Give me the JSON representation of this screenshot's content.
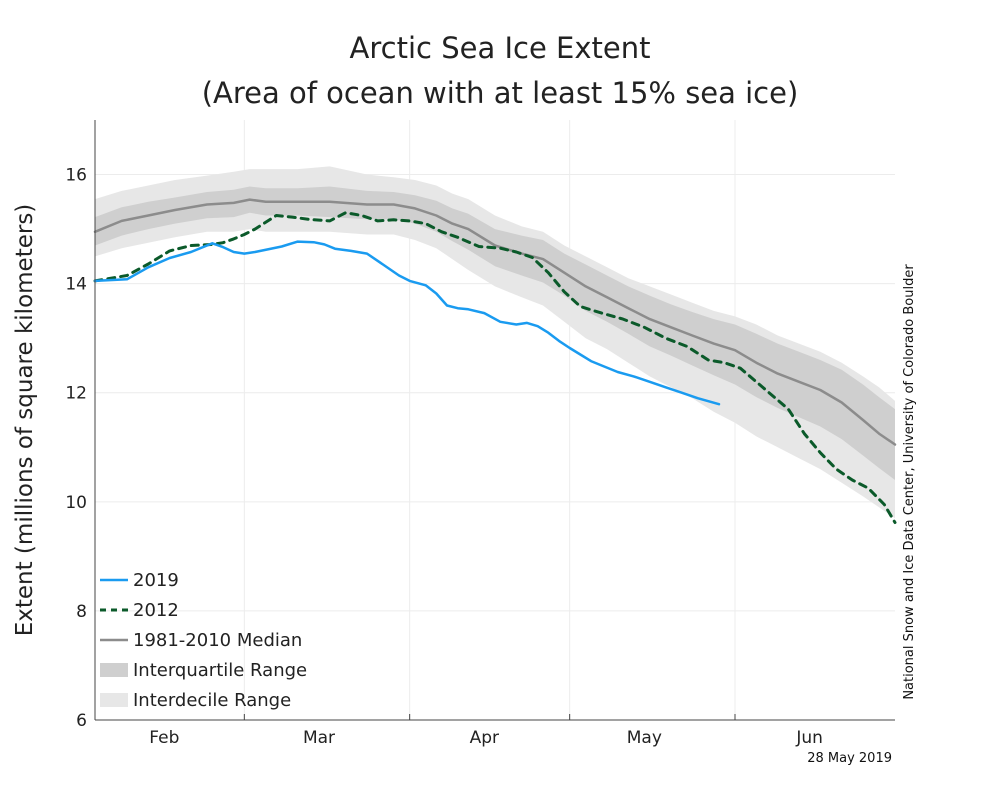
{
  "chart_data": {
    "type": "line",
    "title": [
      "Arctic Sea Ice Extent",
      "(Area of ocean with at least 15% sea ice)"
    ],
    "ylabel": "Extent (millions of square kilometers)",
    "xlabel": "",
    "ylim": [
      6,
      17
    ],
    "xlim": [
      0,
      150
    ],
    "yticks": [
      6,
      8,
      10,
      12,
      14,
      16
    ],
    "x_tick_labels": [
      {
        "x": 13,
        "label": "Feb"
      },
      {
        "x": 42,
        "label": "Mar"
      },
      {
        "x": 73,
        "label": "Apr"
      },
      {
        "x": 103,
        "label": "May"
      },
      {
        "x": 134,
        "label": "Jun"
      }
    ],
    "month_boundaries": [
      28,
      59,
      89,
      120
    ],
    "grid": true,
    "legend_position": "bottom-left",
    "colors": {
      "s2019": "#1a9bf0",
      "s2012": "#0b5a2a",
      "median": "#8c8c8c",
      "interquartile": "#cfcfcf",
      "interdecile": "#e7e7e7"
    },
    "series": [
      {
        "name": "2019",
        "x": [
          0,
          6,
          10,
          14,
          18,
          22,
          24,
          26,
          28,
          30,
          35,
          38,
          41,
          43,
          45,
          48,
          51,
          54,
          57,
          59,
          62,
          64,
          66,
          68,
          70,
          73,
          76,
          79,
          81,
          83,
          85,
          87,
          89,
          91,
          93,
          95,
          98,
          101,
          104,
          107,
          110,
          113,
          117
        ],
        "values": [
          14.05,
          14.08,
          14.3,
          14.47,
          14.58,
          14.74,
          14.67,
          14.58,
          14.55,
          14.58,
          14.68,
          14.77,
          14.76,
          14.72,
          14.64,
          14.6,
          14.55,
          14.35,
          14.15,
          14.05,
          13.97,
          13.82,
          13.6,
          13.55,
          13.53,
          13.46,
          13.3,
          13.25,
          13.28,
          13.22,
          13.1,
          12.95,
          12.82,
          12.7,
          12.58,
          12.5,
          12.38,
          12.3,
          12.2,
          12.1,
          12.0,
          11.9,
          11.79
        ]
      },
      {
        "name": "2012",
        "x": [
          0,
          6,
          10,
          14,
          18,
          22,
          24,
          26,
          28,
          30,
          34,
          37,
          40,
          44,
          47,
          50,
          53,
          56,
          59,
          62,
          65,
          68,
          72,
          76,
          79,
          82,
          85,
          88,
          91,
          95,
          99,
          103,
          107,
          111,
          115,
          118,
          121,
          124,
          127,
          130,
          133,
          136,
          139,
          142,
          145,
          148,
          150
        ],
        "values": [
          14.05,
          14.15,
          14.36,
          14.6,
          14.7,
          14.72,
          14.75,
          14.82,
          14.9,
          15.0,
          15.25,
          15.22,
          15.18,
          15.15,
          15.3,
          15.25,
          15.15,
          15.17,
          15.15,
          15.1,
          14.95,
          14.85,
          14.68,
          14.65,
          14.58,
          14.48,
          14.2,
          13.85,
          13.58,
          13.46,
          13.35,
          13.2,
          13.0,
          12.85,
          12.6,
          12.55,
          12.45,
          12.2,
          11.95,
          11.7,
          11.25,
          10.9,
          10.6,
          10.4,
          10.25,
          9.95,
          9.62
        ]
      },
      {
        "name": "1981-2010 Median",
        "x": [
          0,
          5,
          10,
          15,
          21,
          26,
          29,
          32,
          38,
          44,
          51,
          56,
          60,
          64,
          67,
          70,
          75,
          80,
          84,
          88,
          92,
          96,
          100,
          104,
          108,
          112,
          116,
          120,
          124,
          128,
          132,
          136,
          140,
          144,
          147,
          150
        ],
        "values": [
          14.95,
          15.15,
          15.25,
          15.35,
          15.45,
          15.48,
          15.54,
          15.5,
          15.5,
          15.5,
          15.45,
          15.45,
          15.38,
          15.25,
          15.1,
          15.0,
          14.7,
          14.55,
          14.45,
          14.2,
          13.95,
          13.75,
          13.55,
          13.35,
          13.2,
          13.05,
          12.9,
          12.78,
          12.55,
          12.35,
          12.2,
          12.05,
          11.82,
          11.5,
          11.25,
          11.05
        ]
      }
    ],
    "bands": [
      {
        "name": "Interdecile Range",
        "x": [
          0,
          5,
          10,
          15,
          21,
          26,
          29,
          32,
          38,
          44,
          51,
          56,
          60,
          64,
          67,
          70,
          75,
          80,
          84,
          88,
          92,
          96,
          100,
          104,
          108,
          112,
          116,
          120,
          124,
          128,
          132,
          136,
          140,
          144,
          147,
          150
        ],
        "low": [
          14.5,
          14.65,
          14.75,
          14.85,
          14.95,
          14.95,
          15.0,
          14.95,
          14.95,
          14.95,
          14.9,
          14.9,
          14.8,
          14.65,
          14.45,
          14.25,
          13.95,
          13.75,
          13.6,
          13.3,
          13.0,
          12.8,
          12.55,
          12.3,
          12.1,
          11.9,
          11.65,
          11.45,
          11.2,
          11.0,
          10.8,
          10.6,
          10.35,
          10.1,
          9.9,
          9.7
        ],
        "high": [
          15.55,
          15.7,
          15.8,
          15.9,
          15.98,
          16.05,
          16.1,
          16.1,
          16.1,
          16.15,
          16.0,
          15.95,
          15.9,
          15.8,
          15.65,
          15.55,
          15.25,
          15.05,
          14.95,
          14.7,
          14.5,
          14.3,
          14.1,
          13.95,
          13.8,
          13.65,
          13.5,
          13.4,
          13.25,
          13.05,
          12.9,
          12.75,
          12.55,
          12.3,
          12.1,
          11.85
        ]
      },
      {
        "name": "Interquartile Range",
        "x": [
          0,
          5,
          10,
          15,
          21,
          26,
          29,
          32,
          38,
          44,
          51,
          56,
          60,
          64,
          67,
          70,
          75,
          80,
          84,
          88,
          92,
          96,
          100,
          104,
          108,
          112,
          116,
          120,
          124,
          128,
          132,
          136,
          140,
          144,
          147,
          150
        ],
        "low": [
          14.7,
          14.88,
          15.0,
          15.1,
          15.2,
          15.22,
          15.3,
          15.25,
          15.25,
          15.22,
          15.18,
          15.18,
          15.1,
          14.95,
          14.78,
          14.62,
          14.32,
          14.15,
          14.02,
          13.78,
          13.5,
          13.3,
          13.08,
          12.85,
          12.68,
          12.5,
          12.32,
          12.15,
          11.92,
          11.72,
          11.55,
          11.38,
          11.15,
          10.85,
          10.62,
          10.4
        ],
        "high": [
          15.22,
          15.4,
          15.5,
          15.58,
          15.68,
          15.72,
          15.78,
          15.75,
          15.75,
          15.78,
          15.7,
          15.68,
          15.62,
          15.52,
          15.38,
          15.28,
          15.0,
          14.88,
          14.8,
          14.55,
          14.35,
          14.15,
          13.95,
          13.78,
          13.62,
          13.48,
          13.35,
          13.25,
          13.08,
          12.9,
          12.75,
          12.6,
          12.42,
          12.15,
          11.92,
          11.7
        ]
      }
    ],
    "legend": [
      {
        "label": "2019",
        "key": "s2019",
        "style": "solid"
      },
      {
        "label": "2012",
        "key": "s2012",
        "style": "dashed"
      },
      {
        "label": "1981-2010 Median",
        "key": "median",
        "style": "solid"
      },
      {
        "label": "Interquartile Range",
        "key": "interquartile",
        "style": "band"
      },
      {
        "label": "Interdecile Range",
        "key": "interdecile",
        "style": "band"
      }
    ],
    "credit": "National Snow and Ice Data Center, University of Colorado Boulder",
    "date_note": "28 May 2019"
  }
}
